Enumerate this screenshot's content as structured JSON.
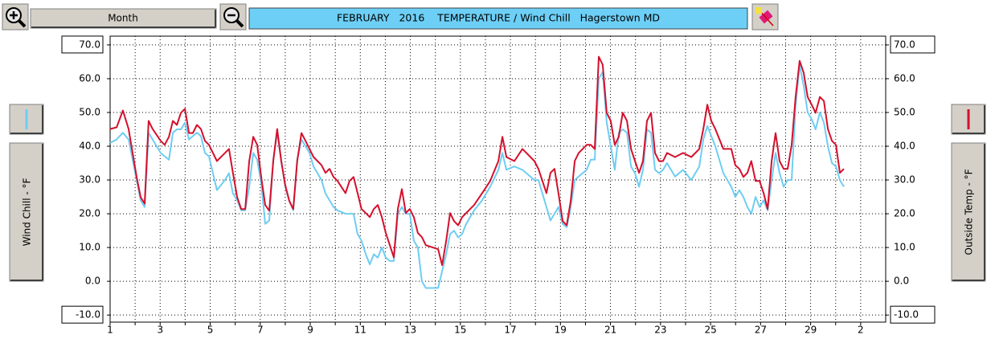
{
  "toolbar": {
    "period": "Month"
  },
  "chart_data": {
    "type": "line",
    "title": "FEBRUARY   2016    TEMPERATURE / Wind Chill   Hagerstown MD",
    "x": [
      1.0,
      1.26,
      1.51,
      1.74,
      1.9,
      2.06,
      2.22,
      2.38,
      2.54,
      2.7,
      3.02,
      3.18,
      3.35,
      3.51,
      3.67,
      3.83,
      3.99,
      4.15,
      4.31,
      4.47,
      4.63,
      4.79,
      4.95,
      5.27,
      5.59,
      5.75,
      5.91,
      6.08,
      6.24,
      6.4,
      6.56,
      6.72,
      6.88,
      7.04,
      7.2,
      7.36,
      7.52,
      7.68,
      7.84,
      8.0,
      8.16,
      8.32,
      8.48,
      8.65,
      8.81,
      8.97,
      9.13,
      9.45,
      9.61,
      9.77,
      9.93,
      10.09,
      10.41,
      10.57,
      10.73,
      10.89,
      11.05,
      11.22,
      11.38,
      11.54,
      11.7,
      11.86,
      12.02,
      12.18,
      12.34,
      12.5,
      12.66,
      12.82,
      12.98,
      13.14,
      13.3,
      13.46,
      13.62,
      14.11,
      14.27,
      14.43,
      14.59,
      14.75,
      14.91,
      15.07,
      15.23,
      15.55,
      15.87,
      16.19,
      16.52,
      16.68,
      16.84,
      17.16,
      17.48,
      17.64,
      17.96,
      18.12,
      18.44,
      18.6,
      18.76,
      18.92,
      19.09,
      19.25,
      19.41,
      19.57,
      19.73,
      20.05,
      20.21,
      20.37,
      20.53,
      20.69,
      20.85,
      21.01,
      21.17,
      21.33,
      21.49,
      21.66,
      21.82,
      21.98,
      22.14,
      22.3,
      22.46,
      22.62,
      22.78,
      22.94,
      23.1,
      23.26,
      23.58,
      23.9,
      24.23,
      24.55,
      24.71,
      24.87,
      25.03,
      25.19,
      25.51,
      25.83,
      25.99,
      26.15,
      26.31,
      26.47,
      26.63,
      26.8,
      26.96,
      27.12,
      27.28,
      27.44,
      27.6,
      27.76,
      27.92,
      28.08,
      28.24,
      28.4,
      28.56,
      28.72,
      28.88,
      29.04,
      29.2,
      29.37,
      29.53,
      29.69,
      29.85,
      30.01,
      30.17,
      30.33
    ],
    "series": [
      {
        "name": "Outside Temp - °F",
        "color": "#d4102c",
        "values": [
          45.1,
          45.6,
          50.6,
          45.1,
          38.0,
          30.9,
          24.9,
          23.0,
          47.5,
          45.1,
          41.6,
          40.4,
          42.8,
          47.5,
          46.3,
          49.9,
          51.1,
          43.9,
          43.9,
          46.3,
          45.1,
          41.6,
          40.4,
          35.6,
          38.0,
          39.2,
          32.1,
          24.9,
          21.4,
          21.4,
          35.6,
          42.8,
          40.4,
          30.9,
          22.6,
          20.9,
          35.6,
          45.1,
          35.6,
          28.5,
          23.8,
          21.4,
          35.6,
          43.9,
          41.6,
          39.2,
          36.8,
          34.4,
          32.1,
          33.3,
          30.9,
          29.7,
          26.1,
          29.7,
          30.9,
          26.1,
          21.4,
          20.2,
          19.0,
          21.4,
          22.6,
          19.0,
          14.3,
          10.7,
          7.1,
          21.4,
          27.3,
          20.2,
          21.4,
          19.0,
          14.3,
          13.1,
          10.7,
          9.5,
          4.8,
          11.9,
          20.2,
          17.8,
          16.6,
          19.0,
          20.2,
          22.6,
          26.1,
          29.7,
          35.6,
          42.8,
          36.8,
          35.6,
          39.2,
          38.0,
          35.6,
          33.3,
          26.1,
          32.1,
          33.3,
          26.1,
          17.8,
          16.6,
          23.8,
          35.6,
          38.0,
          40.4,
          40.4,
          39.2,
          66.5,
          64.1,
          49.9,
          47.5,
          40.4,
          42.8,
          49.9,
          47.5,
          39.2,
          35.6,
          32.1,
          35.6,
          47.5,
          49.9,
          38.0,
          35.6,
          35.6,
          38.0,
          36.8,
          38.0,
          36.8,
          39.2,
          45.1,
          52.3,
          47.5,
          45.1,
          39.2,
          39.2,
          34.4,
          33.3,
          30.9,
          32.1,
          35.6,
          29.7,
          29.7,
          26.1,
          21.4,
          35.6,
          43.9,
          35.6,
          33.3,
          33.3,
          40.4,
          54.6,
          65.3,
          61.8,
          54.6,
          52.3,
          49.9,
          54.6,
          53.4,
          45.1,
          41.6,
          40.4,
          32.1,
          33.3
        ]
      },
      {
        "name": "Wind Chill - °F",
        "color": "#6fcdf2",
        "values": [
          41,
          42,
          44,
          42,
          36,
          30,
          24,
          22,
          44,
          42,
          38,
          37,
          36,
          44,
          45,
          45,
          47,
          42,
          43,
          44,
          43,
          38,
          37,
          27,
          30,
          32,
          26,
          24,
          21,
          21,
          28,
          38,
          36,
          29,
          17,
          18,
          36,
          44,
          36,
          28,
          24,
          21,
          36,
          42,
          40,
          38,
          34,
          30,
          26,
          24,
          22,
          21,
          20,
          20,
          20,
          14,
          12,
          8,
          5,
          8,
          7,
          10,
          7,
          6,
          6,
          20,
          22,
          20,
          20,
          12,
          10,
          0,
          -2,
          -2,
          3,
          8,
          14,
          15,
          13,
          14,
          17,
          21,
          24,
          28,
          33,
          38,
          33,
          34,
          33,
          32,
          30,
          30,
          22,
          18,
          20,
          22,
          17,
          16,
          22,
          30,
          31,
          33,
          36,
          36,
          60,
          62,
          47,
          40,
          33,
          44,
          45,
          44,
          34,
          32,
          28,
          33,
          45,
          44,
          33,
          32,
          33,
          35,
          31,
          33,
          30,
          34,
          42,
          46,
          43,
          40,
          32,
          28,
          25,
          27,
          25,
          22,
          20,
          25,
          22,
          24,
          21,
          30,
          38,
          32,
          28,
          30,
          30,
          52,
          64,
          58,
          50,
          48,
          45,
          50,
          47,
          40,
          35,
          34,
          30,
          28
        ]
      }
    ],
    "xlim": [
      1,
      32
    ],
    "xticks": [
      1,
      {
        "value": 2,
        "label": null
      },
      3,
      {
        "value": 4,
        "label": null
      },
      5,
      {
        "value": 6,
        "label": null
      },
      7,
      {
        "value": 8,
        "label": null
      },
      9,
      {
        "value": 10,
        "label": null
      },
      11,
      {
        "value": 12,
        "label": null
      },
      13,
      {
        "value": 14,
        "label": null
      },
      15,
      {
        "value": 16,
        "label": null
      },
      17,
      {
        "value": 18,
        "label": null
      },
      19,
      {
        "value": 20,
        "label": null
      },
      21,
      {
        "value": 22,
        "label": null
      },
      23,
      {
        "value": 24,
        "label": null
      },
      25,
      {
        "value": 26,
        "label": null
      },
      27,
      {
        "value": 28,
        "label": null
      },
      29,
      {
        "value": 30,
        "label": null
      },
      {
        "value": 31,
        "label": "2"
      }
    ],
    "ylim": [
      -12.1,
      72.6
    ],
    "yticks": [
      {
        "value": -10,
        "label": "-10.0"
      },
      {
        "value": 0,
        "label": "0.0"
      },
      {
        "value": 10,
        "label": "10.0"
      },
      {
        "value": 20,
        "label": "20.0"
      },
      {
        "value": 30,
        "label": "30.0"
      },
      {
        "value": 40,
        "label": "40.0"
      },
      {
        "value": 50,
        "label": "50.0"
      },
      {
        "value": 60,
        "label": "60.0"
      },
      {
        "value": 70,
        "label": "70.0"
      }
    ],
    "grid": true
  }
}
